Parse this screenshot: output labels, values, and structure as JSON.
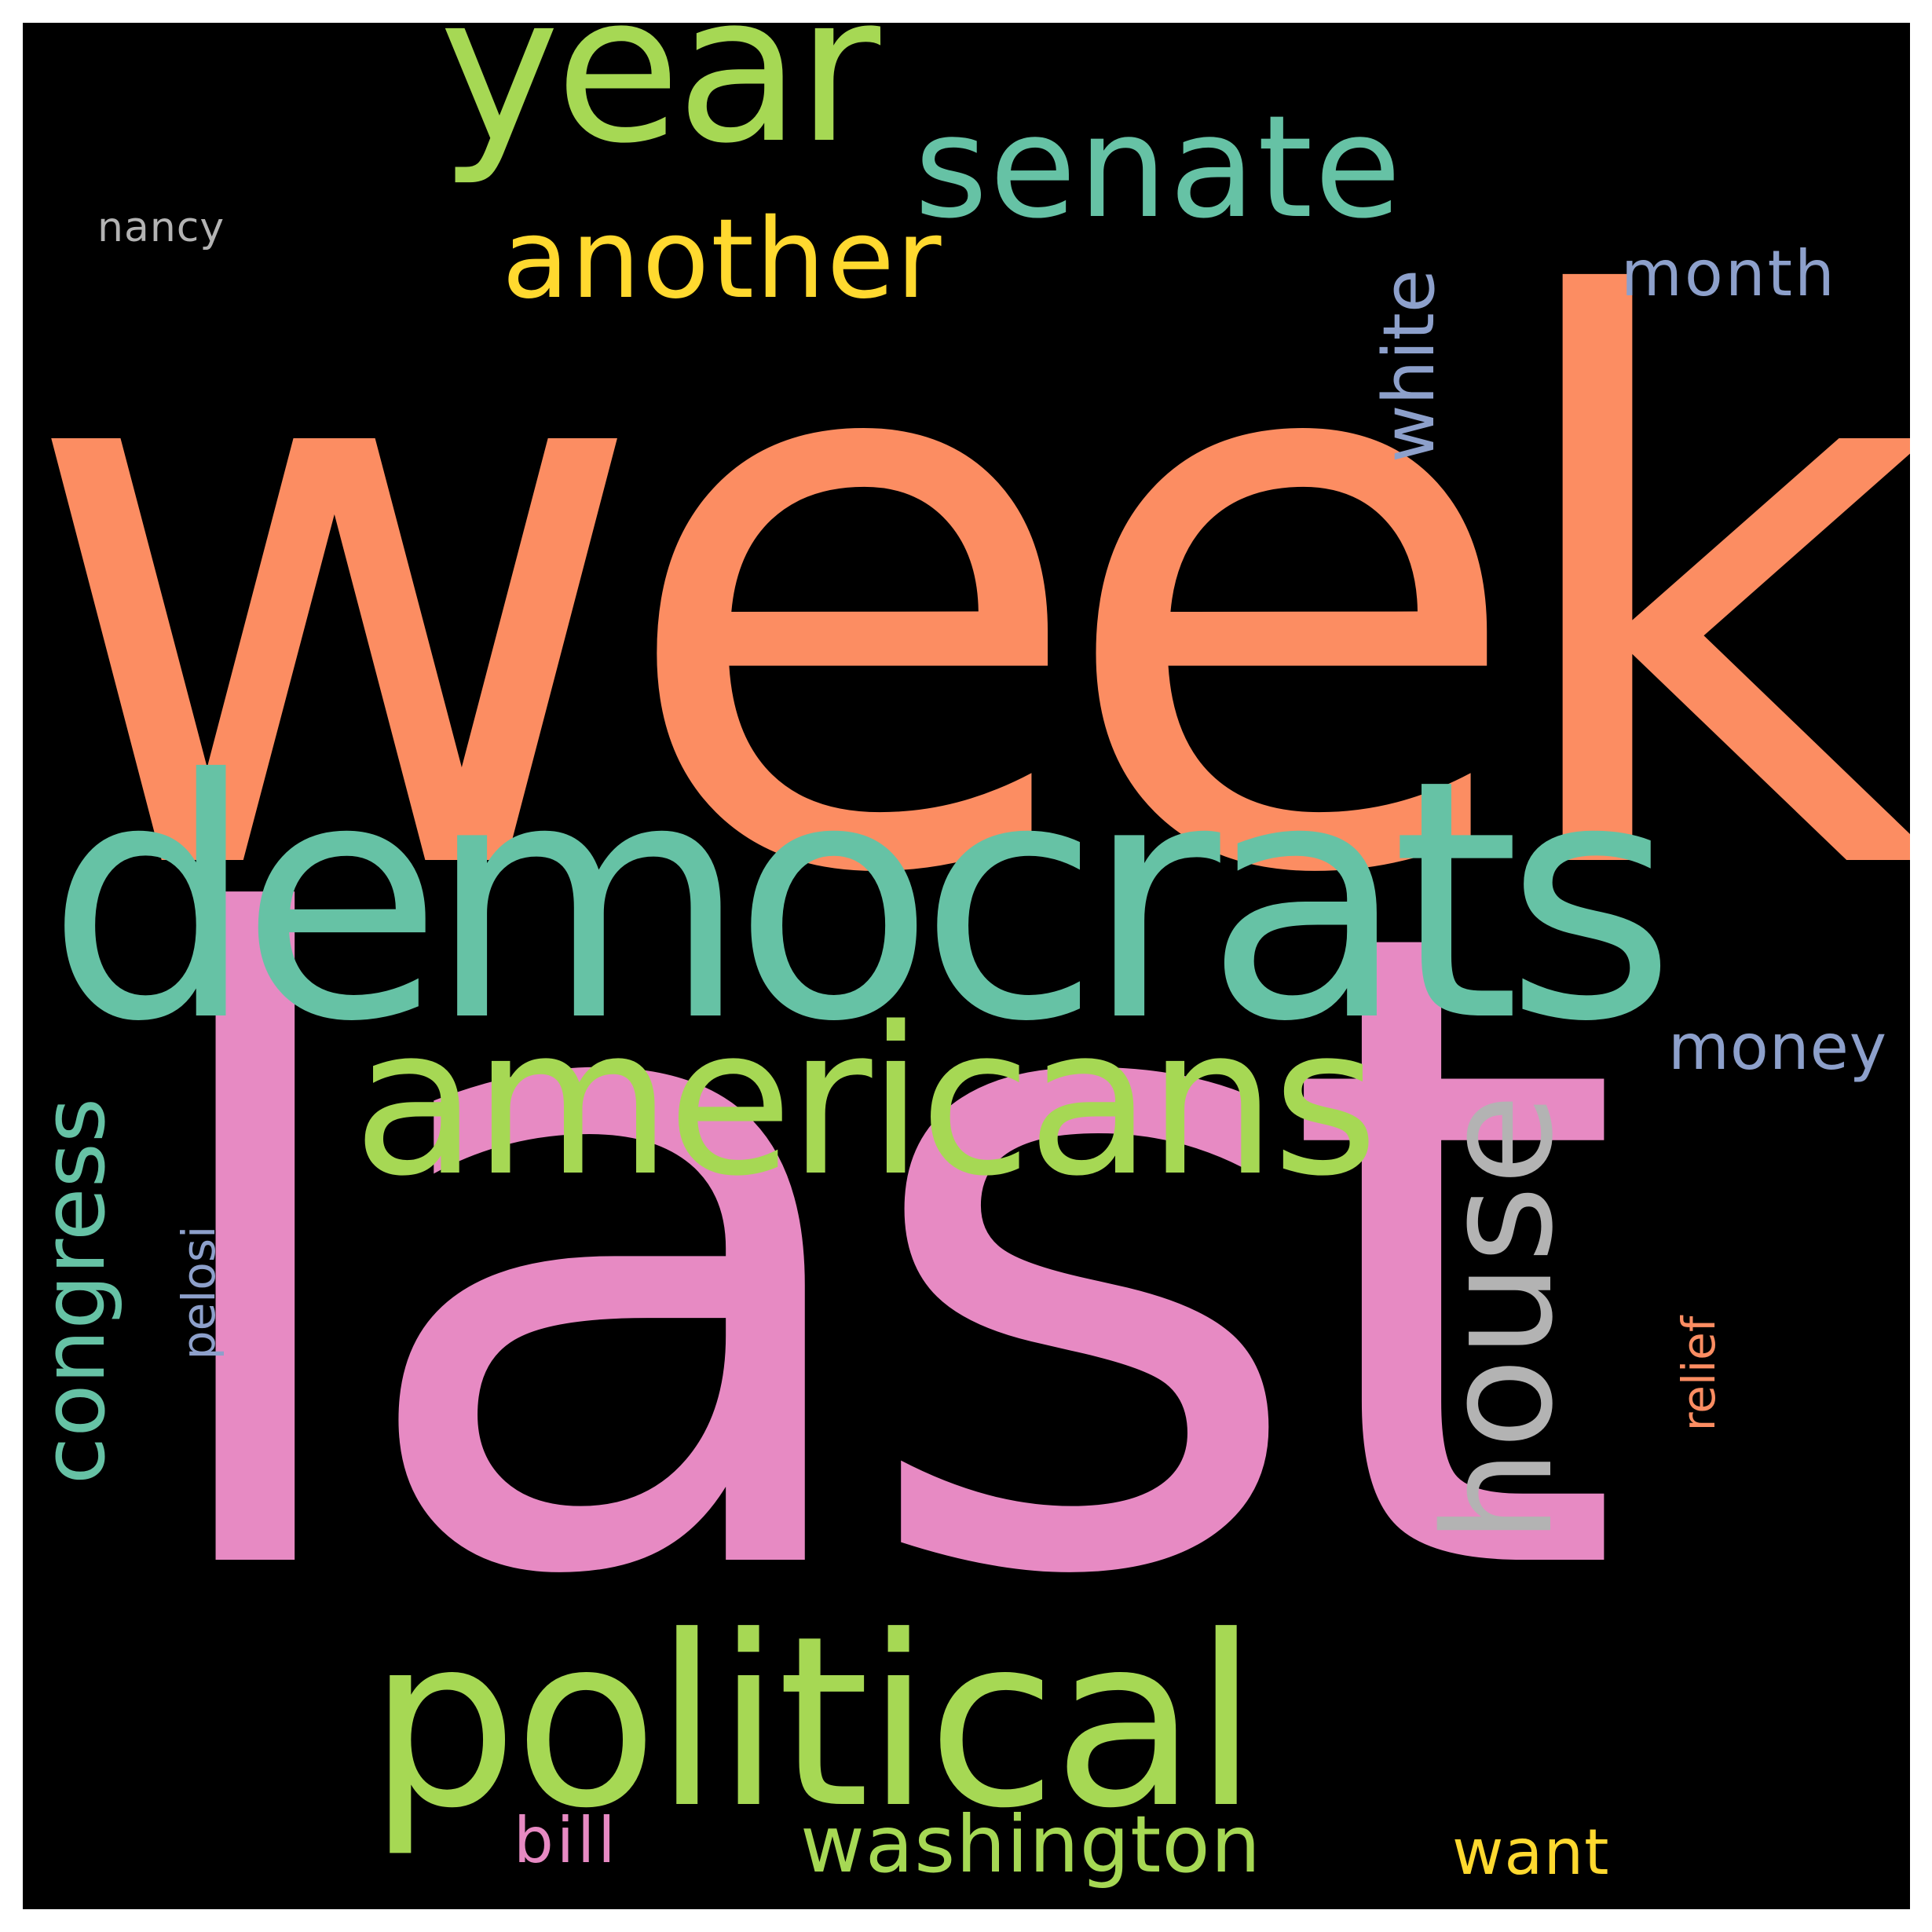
{
  "background_color": "#000000",
  "words": [
    {
      "text": "week",
      "color": "#fc8d62",
      "orientation": "horizontal"
    },
    {
      "text": "last",
      "color": "#e78ac3",
      "orientation": "horizontal"
    },
    {
      "text": "democrats",
      "color": "#66c2a5",
      "orientation": "horizontal"
    },
    {
      "text": "political",
      "color": "#a6d854",
      "orientation": "horizontal"
    },
    {
      "text": "americans",
      "color": "#a6d854",
      "orientation": "horizontal"
    },
    {
      "text": "year",
      "color": "#a6d854",
      "orientation": "horizontal"
    },
    {
      "text": "senate",
      "color": "#66c2a5",
      "orientation": "horizontal"
    },
    {
      "text": "house",
      "color": "#b3b3b3",
      "orientation": "vertical"
    },
    {
      "text": "congress",
      "color": "#66c2a5",
      "orientation": "vertical"
    },
    {
      "text": "another",
      "color": "#ffd92f",
      "orientation": "horizontal"
    },
    {
      "text": "washington",
      "color": "#a6d854",
      "orientation": "horizontal"
    },
    {
      "text": "white",
      "color": "#8da0cb",
      "orientation": "vertical"
    },
    {
      "text": "month",
      "color": "#8da0cb",
      "orientation": "horizontal"
    },
    {
      "text": "money",
      "color": "#8da0cb",
      "orientation": "horizontal"
    },
    {
      "text": "want",
      "color": "#ffd92f",
      "orientation": "horizontal"
    },
    {
      "text": "bill",
      "color": "#e78ac3",
      "orientation": "horizontal"
    },
    {
      "text": "relief",
      "color": "#fc8d62",
      "orientation": "vertical"
    },
    {
      "text": "pelosi",
      "color": "#8da0cb",
      "orientation": "vertical"
    },
    {
      "text": "nancy",
      "color": "#b3b3b3",
      "orientation": "horizontal"
    }
  ]
}
